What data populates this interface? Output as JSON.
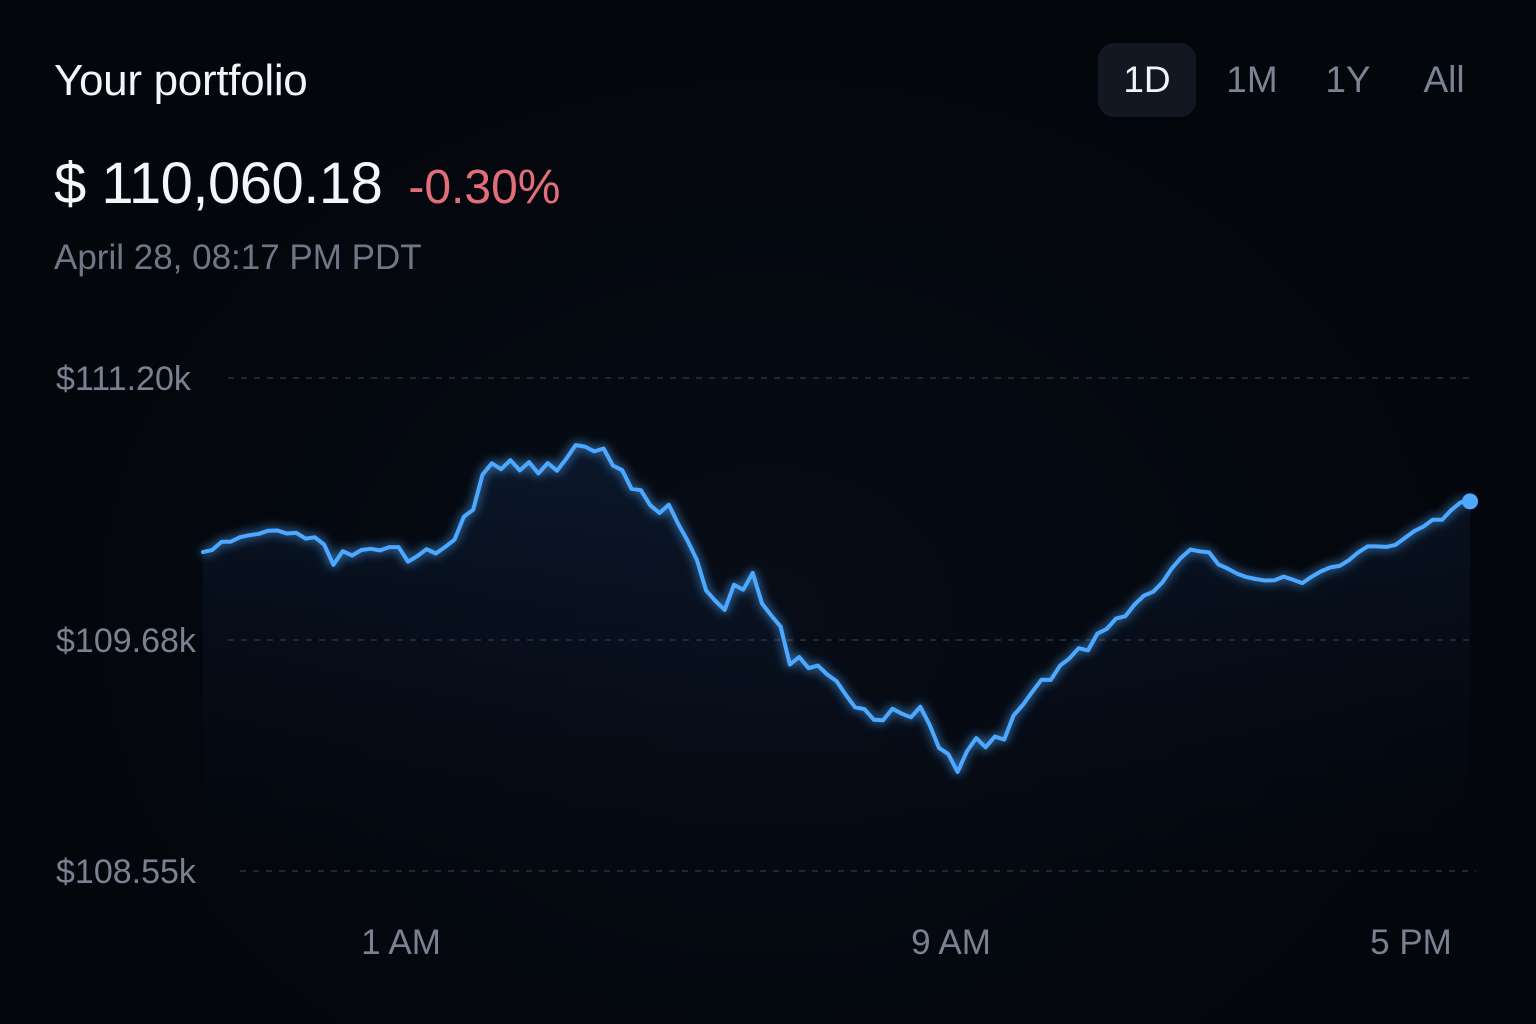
{
  "header": {
    "title": "Your portfolio",
    "value": "$ 110,060.18",
    "change": "-0.30%",
    "timestamp": "April 28, 08:17 PM PDT"
  },
  "range_tabs": [
    {
      "label": "1D",
      "active": true
    },
    {
      "label": "1M",
      "active": false
    },
    {
      "label": "1Y",
      "active": false
    },
    {
      "label": "All",
      "active": false
    }
  ],
  "colors": {
    "line": "#4ea8ff",
    "negative": "#e46d7a",
    "gridline": "#2a3140"
  },
  "chart_data": {
    "type": "line",
    "series": [
      {
        "values": [
          110190,
          110203,
          110250,
          110251,
          110277,
          110288,
          110296,
          110314,
          110315,
          110298,
          110302,
          110268,
          110276,
          110234,
          110116,
          110195,
          110170,
          110202,
          110209,
          110200,
          110219,
          110219,
          110134,
          110167,
          110207,
          110182,
          110220,
          110262,
          110396,
          110436,
          110639,
          110705,
          110671,
          110723,
          110664,
          110712,
          110646,
          110706,
          110662,
          110732,
          110811,
          110802,
          110774,
          110791,
          110692,
          110665,
          110557,
          110549,
          110462,
          110417,
          110465,
          110355,
          110258,
          110146,
          109968,
          109907,
          109854,
          110001,
          109972,
          110070,
          109892,
          109822,
          109757,
          109560,
          109597,
          109542,
          109555,
          109511,
          109479,
          109412,
          109351,
          109342,
          109290,
          109287,
          109344,
          109320,
          109302,
          109353,
          109264,
          109152,
          109122,
          109035,
          109135,
          109200,
          109155,
          109208,
          109193,
          109310,
          109362,
          109425,
          109486,
          109485,
          109555,
          109590,
          109640,
          109629,
          109717,
          109744,
          109804,
          109818,
          109886,
          109937,
          109960,
          110016,
          110096,
          110158,
          110205,
          110194,
          110188,
          110118,
          110094,
          110065,
          110045,
          110034,
          110025,
          110027,
          110048,
          110030,
          110010,
          110047,
          110078,
          110101,
          110110,
          110143,
          110188,
          110223,
          110223,
          110220,
          110232,
          110272,
          110311,
          110338,
          110378,
          110378,
          110435,
          110479,
          110484
        ]
      }
    ],
    "x_ticks": [
      "1 AM",
      "9 AM",
      "5 PM"
    ],
    "y_ticks": [
      "$111.20k",
      "$109.68k",
      "$108.55k"
    ],
    "y_tick_values": [
      111200,
      109680,
      108550
    ],
    "grid": "horizontal dashed"
  }
}
